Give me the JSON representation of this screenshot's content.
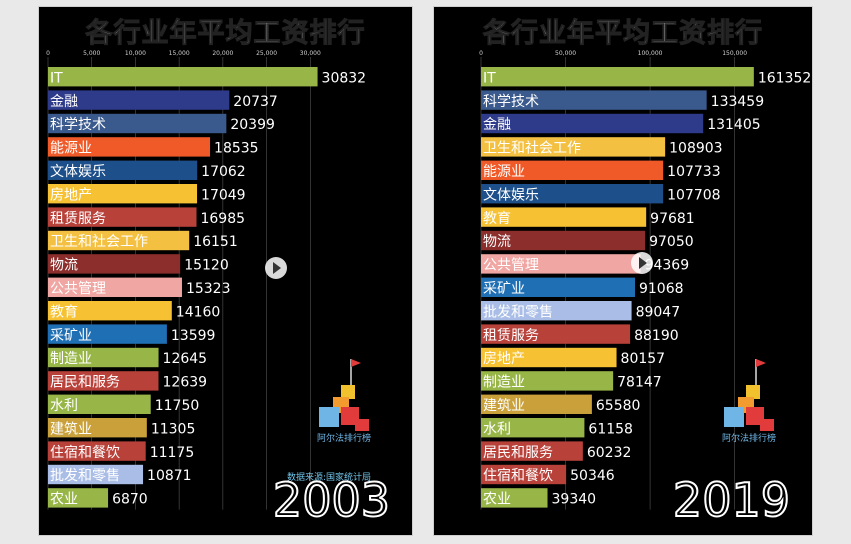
{
  "panels": [
    {
      "title": "各行业年平均工资排行",
      "year": "2003",
      "source": "数据来源:国家统计局",
      "logo_text": "阿尔法排行榜",
      "chart_data": {
        "type": "bar",
        "orientation": "horizontal",
        "title": "各行业年平均工资排行",
        "xlim": [
          0,
          35000
        ],
        "ticks": [
          0,
          5000,
          10000,
          15000,
          20000,
          25000,
          30000
        ],
        "tick_labels": [
          "0",
          "5,000",
          "10,000",
          "15,000",
          "20,000",
          "25,000",
          "30,000"
        ],
        "grid": true,
        "categories": [
          "IT",
          "金融",
          "科学技术",
          "能源业",
          "文体娱乐",
          "房地产",
          "租赁服务",
          "卫生和社会工作",
          "物流",
          "公共管理",
          "教育",
          "采矿业",
          "制造业",
          "居民和服务",
          "水利",
          "建筑业",
          "住宿和餐饮",
          "批发和零售",
          "农业"
        ],
        "values": [
          30832,
          20737,
          20399,
          18535,
          17062,
          17049,
          16985,
          16151,
          15120,
          15323,
          14160,
          13599,
          12645,
          12639,
          11750,
          11305,
          11175,
          10871,
          6870
        ],
        "value_labels": [
          "30832",
          "20737",
          "20399",
          "18535",
          "17062",
          "17049",
          "16985",
          "16151",
          "15120",
          "15323",
          "14160",
          "13599",
          "12645",
          "12639",
          "11750",
          "11305",
          "11175",
          "10871",
          "6870"
        ],
        "colors": [
          "#98b648",
          "#2e3a8a",
          "#3a5a8e",
          "#f05a28",
          "#1d4f8a",
          "#f6c234",
          "#b8413a",
          "#f4c042",
          "#8b2e2c",
          "#f0a7a3",
          "#f6c234",
          "#1f6fb4",
          "#98b648",
          "#b8413a",
          "#98b648",
          "#c9a03a",
          "#b8413a",
          "#a9bde6",
          "#98b648"
        ]
      }
    },
    {
      "title": "各行业年平均工资排行",
      "year": "2019",
      "logo_text": "阿尔法排行榜",
      "chart_data": {
        "type": "bar",
        "orientation": "horizontal",
        "title": "各行业年平均工资排行",
        "xlim": [
          0,
          165000
        ],
        "ticks": [
          0,
          50000,
          100000,
          150000
        ],
        "tick_labels": [
          "0",
          "50,000",
          "100,000",
          "150,000"
        ],
        "grid": true,
        "categories": [
          "IT",
          "科学技术",
          "金融",
          "卫生和社会工作",
          "能源业",
          "文体娱乐",
          "教育",
          "物流",
          "公共管理",
          "采矿业",
          "批发和零售",
          "租赁服务",
          "房地产",
          "制造业",
          "建筑业",
          "水利",
          "居民和服务",
          "住宿和餐饮",
          "农业"
        ],
        "values": [
          161352,
          133459,
          131405,
          108903,
          107733,
          107708,
          97681,
          97050,
          94369,
          91068,
          89047,
          88190,
          80157,
          78147,
          65580,
          61158,
          60232,
          50346,
          39340
        ],
        "value_labels": [
          "161352",
          "133459",
          "131405",
          "108903",
          "107733",
          "107708",
          "97681",
          "97050",
          "94369",
          "91068",
          "89047",
          "88190",
          "80157",
          "78147",
          "65580",
          "61158",
          "60232",
          "50346",
          "39340"
        ],
        "colors": [
          "#98b648",
          "#3a5a8e",
          "#2e3a8a",
          "#f4c042",
          "#f05a28",
          "#1d4f8a",
          "#f6c234",
          "#8b2e2c",
          "#f0a7a3",
          "#1f6fb4",
          "#a9bde6",
          "#b8413a",
          "#f6c234",
          "#98b648",
          "#c9a03a",
          "#98b648",
          "#b8413a",
          "#b8413a",
          "#98b648"
        ]
      }
    }
  ]
}
